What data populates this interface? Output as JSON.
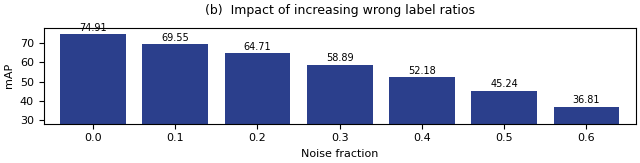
{
  "chart_data": {
    "type": "bar",
    "title": "(b)  Impact of increasing wrong label ratios",
    "xlabel": "Noise fraction",
    "ylabel": "mAP",
    "categories": [
      "0.0",
      "0.1",
      "0.2",
      "0.3",
      "0.4",
      "0.5",
      "0.6"
    ],
    "values": [
      74.91,
      69.55,
      64.71,
      58.89,
      52.18,
      45.24,
      36.81
    ],
    "color": "#2b3f8c",
    "ylim": [
      28,
      78
    ],
    "yticks": [
      30,
      40,
      50,
      60,
      70
    ],
    "data_labels": true,
    "grid": false
  }
}
